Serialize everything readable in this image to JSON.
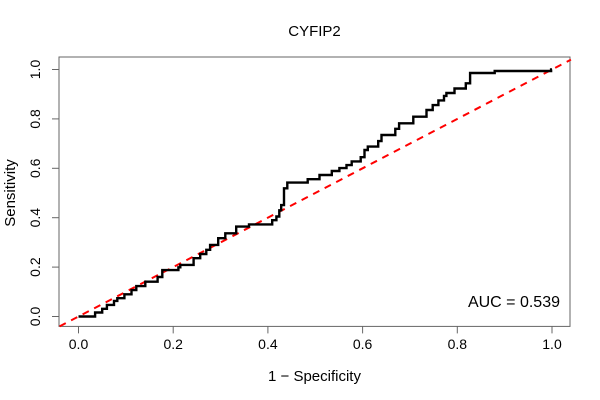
{
  "chart_data": {
    "type": "line",
    "subtype": "roc-curve",
    "title": "CYFIP2",
    "xlabel": "1 − Specificity",
    "ylabel": "Sensitivity",
    "annotation": "AUC = 0.539",
    "auc_value": 0.539,
    "xlim": [
      -0.04,
      1.04
    ],
    "ylim": [
      -0.04,
      1.04
    ],
    "grid": false,
    "legend": "none",
    "x_ticks": [
      {
        "label": "0.0",
        "value": 0.0
      },
      {
        "label": "0.2",
        "value": 0.2
      },
      {
        "label": "0.4",
        "value": 0.4
      },
      {
        "label": "0.6",
        "value": 0.6
      },
      {
        "label": "0.8",
        "value": 0.8
      },
      {
        "label": "1.0",
        "value": 1.0
      }
    ],
    "y_ticks": [
      {
        "label": "0.0",
        "value": 0.0
      },
      {
        "label": "0.2",
        "value": 0.2
      },
      {
        "label": "0.4",
        "value": 0.4
      },
      {
        "label": "0.6",
        "value": 0.6
      },
      {
        "label": "0.8",
        "value": 0.8
      },
      {
        "label": "1.0",
        "value": 1.0
      }
    ],
    "series": [
      {
        "name": "ROC curve",
        "color": "#000000",
        "line_style": "solid",
        "line_width": 2.4,
        "start": [
          0.0,
          0.0
        ],
        "steps_format": "[sensitivity_level, x_end_of_plateau]",
        "steps": [
          [
            0.0,
            0.035
          ],
          [
            0.016,
            0.05
          ],
          [
            0.031,
            0.06
          ],
          [
            0.047,
            0.075
          ],
          [
            0.063,
            0.082
          ],
          [
            0.074,
            0.097
          ],
          [
            0.09,
            0.112
          ],
          [
            0.107,
            0.122
          ],
          [
            0.123,
            0.141
          ],
          [
            0.141,
            0.167
          ],
          [
            0.16,
            0.177
          ],
          [
            0.188,
            0.211
          ],
          [
            0.199,
            0.215
          ],
          [
            0.209,
            0.243
          ],
          [
            0.236,
            0.257
          ],
          [
            0.253,
            0.27
          ],
          [
            0.27,
            0.278
          ],
          [
            0.29,
            0.295
          ],
          [
            0.317,
            0.31
          ],
          [
            0.337,
            0.333
          ],
          [
            0.364,
            0.36
          ],
          [
            0.373,
            0.409
          ],
          [
            0.39,
            0.418
          ],
          [
            0.405,
            0.424
          ],
          [
            0.43,
            0.428
          ],
          [
            0.451,
            0.434
          ],
          [
            0.519,
            0.441
          ],
          [
            0.542,
            0.484
          ],
          [
            0.556,
            0.509
          ],
          [
            0.573,
            0.535
          ],
          [
            0.589,
            0.551
          ],
          [
            0.601,
            0.566
          ],
          [
            0.613,
            0.577
          ],
          [
            0.628,
            0.596
          ],
          [
            0.645,
            0.604
          ],
          [
            0.674,
            0.611
          ],
          [
            0.688,
            0.633
          ],
          [
            0.71,
            0.64
          ],
          [
            0.735,
            0.669
          ],
          [
            0.76,
            0.677
          ],
          [
            0.782,
            0.707
          ],
          [
            0.809,
            0.735
          ],
          [
            0.836,
            0.748
          ],
          [
            0.856,
            0.76
          ],
          [
            0.875,
            0.772
          ],
          [
            0.893,
            0.777
          ],
          [
            0.905,
            0.794
          ],
          [
            0.923,
            0.818
          ],
          [
            0.944,
            0.827
          ],
          [
            0.986,
            0.879
          ],
          [
            0.994,
            0.998
          ],
          [
            1.0,
            1.0
          ]
        ]
      },
      {
        "name": "chance reference diagonal",
        "color": "#ff0000",
        "line_style": "dashed",
        "line_width": 2,
        "points": [
          [
            -0.04,
            -0.04
          ],
          [
            1.04,
            1.04
          ]
        ]
      }
    ],
    "axis_color": "#666666",
    "text_color": "#000000",
    "background_color": "#ffffff"
  }
}
